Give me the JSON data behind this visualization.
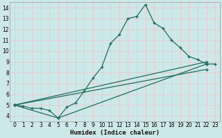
{
  "xlabel": "Humidex (Indice chaleur)",
  "bg_color": "#cde8e8",
  "grid_color": "#e8c8c8",
  "line_color": "#1e6b5e",
  "xlim": [
    -0.5,
    23.5
  ],
  "ylim": [
    3.5,
    14.5
  ],
  "xticks": [
    0,
    1,
    2,
    3,
    4,
    5,
    6,
    7,
    8,
    9,
    10,
    11,
    12,
    13,
    14,
    15,
    16,
    17,
    18,
    19,
    20,
    21,
    22,
    23
  ],
  "yticks": [
    4,
    5,
    6,
    7,
    8,
    9,
    10,
    11,
    12,
    13,
    14
  ],
  "line1_x": [
    0,
    1,
    2,
    3,
    4,
    5,
    6,
    7,
    8,
    9,
    10,
    11,
    12,
    13,
    14,
    15,
    16,
    17,
    18,
    19,
    20,
    21,
    22,
    23
  ],
  "line1_y": [
    5.0,
    4.9,
    4.7,
    4.7,
    4.5,
    3.8,
    4.8,
    5.2,
    6.3,
    7.5,
    8.5,
    10.7,
    11.5,
    13.0,
    13.2,
    14.3,
    12.6,
    12.1,
    11.0,
    10.3,
    9.5,
    9.2,
    8.8,
    8.8
  ],
  "line2_x": [
    0,
    5,
    22
  ],
  "line2_y": [
    5.0,
    3.8,
    8.8
  ],
  "line3_x": [
    0,
    22
  ],
  "line3_y": [
    5.0,
    9.0
  ],
  "line4_x": [
    0,
    22
  ],
  "line4_y": [
    5.0,
    8.3
  ]
}
